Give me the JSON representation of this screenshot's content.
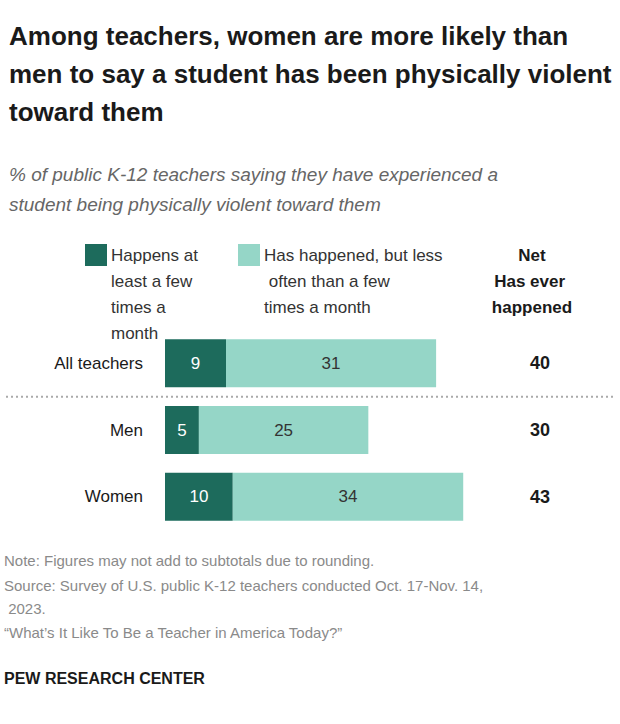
{
  "chart_data": {
    "type": "bar",
    "orientation": "horizontal",
    "stacked": true,
    "data_labels": true,
    "tick_labels": "y",
    "title": "Among teachers, women are more likely than men to say a student has been physically violent toward them",
    "subtitle": "% of public K-12 teachers saying they have experienced a student being physically violent toward them",
    "categories": [
      "All teachers",
      "Men",
      "Women"
    ],
    "series": [
      {
        "name": "Happens at least a few times a month",
        "color": "#1d6b5c",
        "values": [
          9,
          5,
          10
        ]
      },
      {
        "name": "Has happened, but less often than a few times a month",
        "color": "#95d6c7",
        "values": [
          31,
          25,
          34
        ]
      }
    ],
    "net": {
      "label": "Net Has ever happened",
      "values": [
        40,
        30,
        43
      ]
    },
    "xlim": [
      0,
      45
    ],
    "note": "Note: Figures may not add to subtotals due to rounding.",
    "source": "Source: Survey of U.S. public K-12 teachers conducted Oct. 17-Nov. 14, 2023.",
    "report": "“What’s It Like To Be a Teacher in America Today?”",
    "credit": "PEW RESEARCH CENTER"
  }
}
